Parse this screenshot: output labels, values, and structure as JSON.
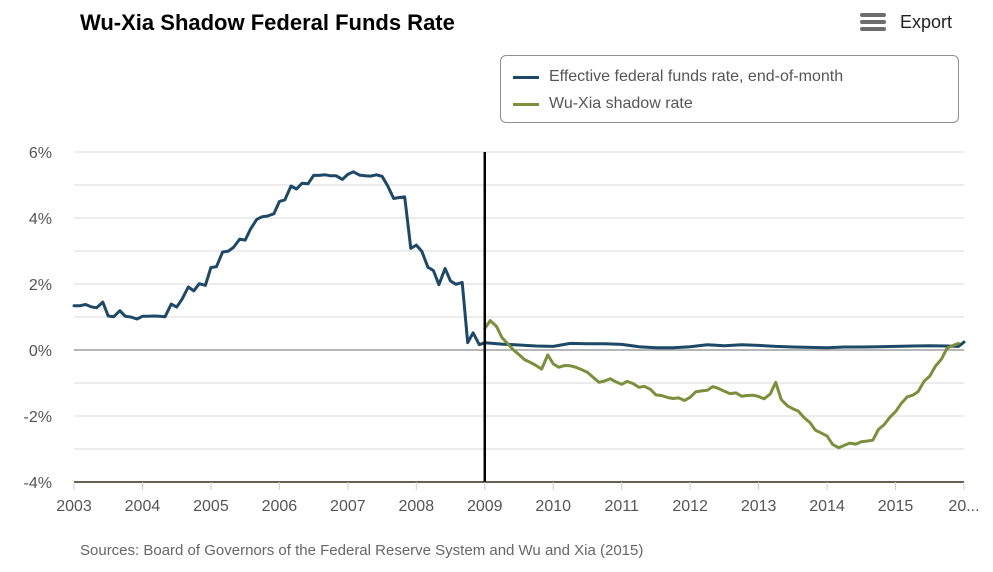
{
  "export": {
    "label": "Export",
    "icon": "menu-icon"
  },
  "source": "Sources: Board of Governors of the Federal Reserve System and Wu and Xia (2015)",
  "chart_data": {
    "type": "line",
    "title": "Wu-Xia Shadow Federal Funds Rate",
    "xlabel": "",
    "ylabel": "",
    "xlim": [
      2003.0,
      2016.0
    ],
    "ylim": [
      -4,
      6
    ],
    "y_ticks": [
      "6%",
      "4%",
      "2%",
      "0%",
      "-2%",
      "-4%"
    ],
    "y_tick_values": [
      6,
      4,
      2,
      0,
      -2,
      -4
    ],
    "x_ticks": [
      "2003",
      "2004",
      "2005",
      "2006",
      "2007",
      "2008",
      "2009",
      "2010",
      "2011",
      "2012",
      "2013",
      "2014",
      "2015",
      "20..."
    ],
    "x_tick_values": [
      2003,
      2004,
      2005,
      2006,
      2007,
      2008,
      2009,
      2010,
      2011,
      2012,
      2013,
      2014,
      2015,
      2016
    ],
    "grid": true,
    "legend_position": "top-right",
    "vertical_marker_x": 2009.0,
    "series": [
      {
        "name": "Effective federal funds rate, end-of-month",
        "color": "#1d4866",
        "x": [
          2003.0,
          2003.08,
          2003.17,
          2003.25,
          2003.33,
          2003.42,
          2003.5,
          2003.58,
          2003.67,
          2003.75,
          2003.83,
          2003.92,
          2004.0,
          2004.08,
          2004.17,
          2004.25,
          2004.33,
          2004.42,
          2004.5,
          2004.58,
          2004.67,
          2004.75,
          2004.83,
          2004.92,
          2005.0,
          2005.08,
          2005.17,
          2005.25,
          2005.33,
          2005.42,
          2005.5,
          2005.58,
          2005.67,
          2005.75,
          2005.83,
          2005.92,
          2006.0,
          2006.08,
          2006.17,
          2006.25,
          2006.33,
          2006.42,
          2006.5,
          2006.58,
          2006.67,
          2006.75,
          2006.83,
          2006.92,
          2007.0,
          2007.08,
          2007.17,
          2007.25,
          2007.33,
          2007.42,
          2007.5,
          2007.58,
          2007.67,
          2007.75,
          2007.83,
          2007.92,
          2008.0,
          2008.08,
          2008.17,
          2008.25,
          2008.33,
          2008.42,
          2008.5,
          2008.58,
          2008.67,
          2008.75,
          2008.83,
          2008.92,
          2009.0,
          2009.25,
          2009.5,
          2009.75,
          2010.0,
          2010.25,
          2010.5,
          2010.75,
          2011.0,
          2011.25,
          2011.5,
          2011.75,
          2012.0,
          2012.25,
          2012.5,
          2012.75,
          2013.0,
          2013.25,
          2013.5,
          2013.75,
          2014.0,
          2014.25,
          2014.5,
          2014.75,
          2015.0,
          2015.25,
          2015.5,
          2015.75,
          2015.92,
          2016.0
        ],
        "values": [
          1.34,
          1.34,
          1.38,
          1.31,
          1.28,
          1.45,
          1.03,
          1.01,
          1.19,
          1.02,
          1.0,
          0.94,
          1.02,
          1.02,
          1.03,
          1.02,
          1.01,
          1.39,
          1.3,
          1.55,
          1.91,
          1.79,
          2.01,
          1.96,
          2.5,
          2.52,
          2.97,
          2.99,
          3.11,
          3.36,
          3.33,
          3.67,
          3.96,
          4.04,
          4.06,
          4.13,
          4.5,
          4.55,
          4.97,
          4.88,
          5.05,
          5.04,
          5.29,
          5.29,
          5.31,
          5.28,
          5.28,
          5.17,
          5.32,
          5.4,
          5.3,
          5.28,
          5.27,
          5.31,
          5.26,
          4.98,
          4.59,
          4.62,
          4.64,
          3.08,
          3.18,
          2.99,
          2.51,
          2.41,
          1.98,
          2.47,
          2.09,
          1.99,
          2.05,
          0.22,
          0.52,
          0.16,
          0.22,
          0.18,
          0.15,
          0.12,
          0.11,
          0.2,
          0.19,
          0.19,
          0.17,
          0.1,
          0.07,
          0.07,
          0.1,
          0.16,
          0.13,
          0.16,
          0.14,
          0.11,
          0.09,
          0.08,
          0.07,
          0.09,
          0.09,
          0.1,
          0.11,
          0.12,
          0.13,
          0.12,
          0.11,
          0.24
        ]
      },
      {
        "name": "Wu-Xia shadow rate",
        "color": "#7b8f3c",
        "x": [
          2009.0,
          2009.08,
          2009.17,
          2009.25,
          2009.33,
          2009.42,
          2009.5,
          2009.58,
          2009.67,
          2009.75,
          2009.83,
          2009.92,
          2010.0,
          2010.08,
          2010.17,
          2010.25,
          2010.33,
          2010.42,
          2010.5,
          2010.58,
          2010.67,
          2010.75,
          2010.83,
          2010.92,
          2011.0,
          2011.08,
          2011.17,
          2011.25,
          2011.33,
          2011.42,
          2011.5,
          2011.58,
          2011.67,
          2011.75,
          2011.83,
          2011.92,
          2012.0,
          2012.08,
          2012.17,
          2012.25,
          2012.33,
          2012.42,
          2012.5,
          2012.58,
          2012.67,
          2012.75,
          2012.83,
          2012.92,
          2013.0,
          2013.08,
          2013.17,
          2013.25,
          2013.33,
          2013.42,
          2013.5,
          2013.58,
          2013.67,
          2013.75,
          2013.83,
          2013.92,
          2014.0,
          2014.08,
          2014.17,
          2014.25,
          2014.33,
          2014.42,
          2014.5,
          2014.58,
          2014.67,
          2014.75,
          2014.83,
          2014.92,
          2015.0,
          2015.08,
          2015.17,
          2015.25,
          2015.33,
          2015.42,
          2015.5,
          2015.58,
          2015.67,
          2015.75,
          2015.83,
          2015.92
        ],
        "values": [
          0.65,
          0.89,
          0.72,
          0.38,
          0.2,
          0.0,
          -0.14,
          -0.29,
          -0.38,
          -0.47,
          -0.58,
          -0.15,
          -0.42,
          -0.52,
          -0.47,
          -0.48,
          -0.52,
          -0.6,
          -0.68,
          -0.82,
          -0.98,
          -0.94,
          -0.87,
          -0.97,
          -1.04,
          -0.95,
          -1.02,
          -1.13,
          -1.1,
          -1.19,
          -1.36,
          -1.38,
          -1.44,
          -1.47,
          -1.45,
          -1.53,
          -1.43,
          -1.27,
          -1.24,
          -1.22,
          -1.11,
          -1.17,
          -1.25,
          -1.32,
          -1.3,
          -1.4,
          -1.38,
          -1.37,
          -1.41,
          -1.48,
          -1.33,
          -0.98,
          -1.5,
          -1.69,
          -1.78,
          -1.85,
          -2.06,
          -2.2,
          -2.43,
          -2.52,
          -2.61,
          -2.86,
          -2.96,
          -2.89,
          -2.82,
          -2.85,
          -2.78,
          -2.76,
          -2.73,
          -2.41,
          -2.27,
          -2.03,
          -1.87,
          -1.63,
          -1.42,
          -1.37,
          -1.26,
          -0.94,
          -0.79,
          -0.5,
          -0.28,
          0.05,
          0.13,
          0.2
        ]
      }
    ]
  }
}
